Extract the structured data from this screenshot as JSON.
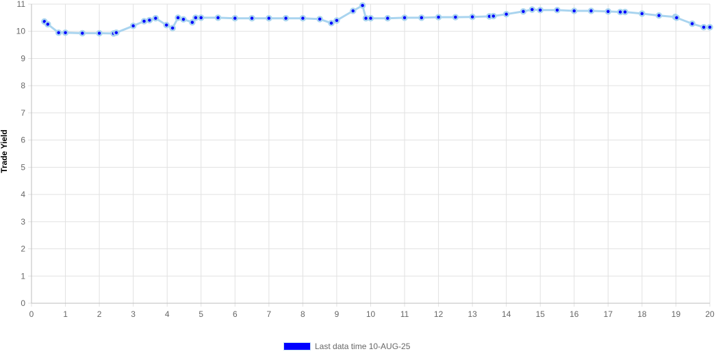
{
  "chart_data": {
    "type": "line",
    "title": "",
    "xlabel": "",
    "ylabel": "Trade Yield",
    "xlim": [
      0,
      20
    ],
    "ylim": [
      0,
      11
    ],
    "x_ticks": [
      0,
      1,
      2,
      3,
      4,
      5,
      6,
      7,
      8,
      9,
      10,
      11,
      12,
      13,
      14,
      15,
      16,
      17,
      18,
      19,
      20
    ],
    "y_ticks": [
      0,
      1,
      2,
      3,
      4,
      5,
      6,
      7,
      8,
      9,
      10,
      11
    ],
    "grid": true,
    "legend_position": "bottom",
    "line_color": "#a9d4ef",
    "point_color": "#0000ff",
    "point_border_color": "#a9d4ef",
    "series": [
      {
        "name": "Last data time 10-AUG-25",
        "points": [
          [
            0.38,
            10.36
          ],
          [
            0.48,
            10.26
          ],
          [
            0.8,
            9.95
          ],
          [
            1.0,
            9.95
          ],
          [
            1.5,
            9.93
          ],
          [
            2.0,
            9.93
          ],
          [
            2.42,
            9.92
          ],
          [
            2.5,
            9.95
          ],
          [
            3.0,
            10.2
          ],
          [
            3.32,
            10.37
          ],
          [
            3.48,
            10.41
          ],
          [
            3.66,
            10.48
          ],
          [
            3.98,
            10.23
          ],
          [
            4.16,
            10.12
          ],
          [
            4.32,
            10.5
          ],
          [
            4.48,
            10.44
          ],
          [
            4.74,
            10.33
          ],
          [
            4.84,
            10.5
          ],
          [
            5.0,
            10.5
          ],
          [
            5.5,
            10.5
          ],
          [
            6.0,
            10.48
          ],
          [
            6.5,
            10.48
          ],
          [
            7.0,
            10.48
          ],
          [
            7.5,
            10.48
          ],
          [
            8.0,
            10.48
          ],
          [
            8.5,
            10.45
          ],
          [
            8.84,
            10.3
          ],
          [
            9.0,
            10.4
          ],
          [
            9.48,
            10.75
          ],
          [
            9.76,
            10.95
          ],
          [
            9.86,
            10.48
          ],
          [
            10.0,
            10.48
          ],
          [
            10.5,
            10.48
          ],
          [
            11.0,
            10.5
          ],
          [
            11.5,
            10.5
          ],
          [
            12.0,
            10.52
          ],
          [
            12.5,
            10.52
          ],
          [
            13.0,
            10.53
          ],
          [
            13.5,
            10.55
          ],
          [
            13.62,
            10.56
          ],
          [
            14.0,
            10.63
          ],
          [
            14.5,
            10.73
          ],
          [
            14.76,
            10.8
          ],
          [
            15.0,
            10.78
          ],
          [
            15.5,
            10.78
          ],
          [
            16.0,
            10.75
          ],
          [
            16.5,
            10.75
          ],
          [
            17.0,
            10.73
          ],
          [
            17.36,
            10.71
          ],
          [
            17.5,
            10.71
          ],
          [
            18.0,
            10.65
          ],
          [
            18.5,
            10.58
          ],
          [
            18.98,
            10.53
          ],
          [
            19.02,
            10.5
          ],
          [
            19.48,
            10.28
          ],
          [
            19.82,
            10.15
          ],
          [
            20.0,
            10.15
          ]
        ]
      }
    ]
  }
}
